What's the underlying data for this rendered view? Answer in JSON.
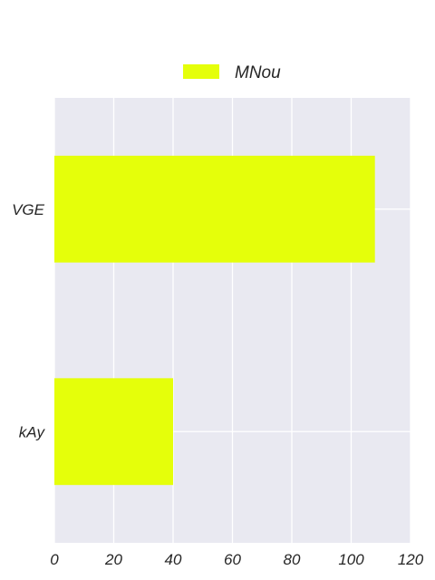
{
  "chart_data": {
    "type": "bar",
    "orientation": "horizontal",
    "categories": [
      "VGE",
      "kAy"
    ],
    "series": [
      {
        "name": "MNou",
        "values": [
          108,
          40
        ],
        "color": "#e5ff0a"
      }
    ],
    "xlim": [
      0,
      120
    ],
    "xticks": [
      "0",
      "20",
      "40",
      "60",
      "80",
      "100",
      "120"
    ],
    "title": "",
    "xlabel": "",
    "ylabel": "",
    "grid": true,
    "legend_position": "top-center",
    "background_color": "#e9e9f1",
    "grid_color": "#ffffff"
  }
}
